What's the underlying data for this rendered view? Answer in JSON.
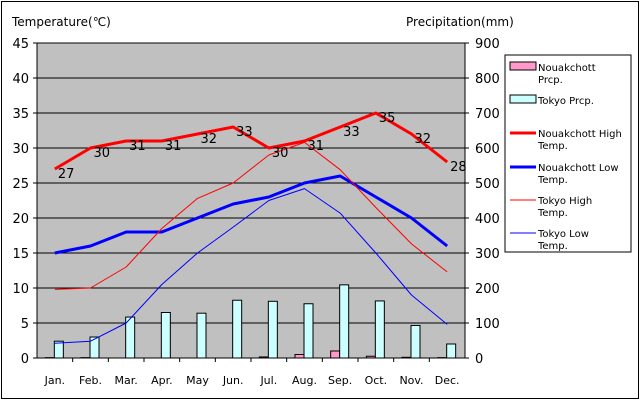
{
  "chart_data": {
    "type": "line",
    "title_left": "Temperature(℃)",
    "title_right": "Precipitation(mm)",
    "categories": [
      "Jan.",
      "Feb.",
      "Mar.",
      "Apr.",
      "May",
      "Jun.",
      "Jul.",
      "Aug.",
      "Sep.",
      "Oct.",
      "Nov.",
      "Dec."
    ],
    "y_left": {
      "min": 0,
      "max": 45,
      "step": 5,
      "ticks": [
        "0",
        "5",
        "10",
        "15",
        "20",
        "25",
        "30",
        "35",
        "40",
        "45"
      ]
    },
    "y_right": {
      "min": 0,
      "max": 900,
      "step": 100,
      "ticks": [
        "0",
        "100",
        "200",
        "300",
        "400",
        "500",
        "600",
        "700",
        "800",
        "900"
      ]
    },
    "grid": true,
    "legend_position": "right",
    "precipitation_series": [
      {
        "name": "Nouakchott Prcp.",
        "color": "#ff99cc",
        "axis": "right",
        "values": [
          1,
          1,
          0,
          0,
          0,
          0,
          3,
          10,
          20,
          5,
          2,
          1
        ]
      },
      {
        "name": "Tokyo Prcp.",
        "color": "#ccffff",
        "axis": "right",
        "values": [
          48,
          60,
          117,
          130,
          128,
          165,
          162,
          155,
          209,
          163,
          93,
          40
        ]
      }
    ],
    "temperature_series": [
      {
        "name": "Nouakchott High Temp.",
        "color": "#ff0000",
        "width": "thick",
        "axis": "left",
        "values": [
          27,
          30,
          31,
          31,
          32,
          33,
          30,
          31,
          33,
          35,
          32,
          28
        ],
        "labels": [
          "27",
          "30",
          "31",
          "31",
          "32",
          "33",
          "30",
          "31",
          "33",
          "35",
          "32",
          "28"
        ]
      },
      {
        "name": "Nouakchott Low Temp.",
        "color": "#0000ff",
        "width": "thick",
        "axis": "left",
        "values": [
          15,
          16,
          18,
          18,
          20,
          22,
          23,
          25,
          26,
          23,
          20,
          16
        ]
      },
      {
        "name": "Tokyo High Temp.",
        "color": "#ff0000",
        "width": "thin",
        "axis": "left",
        "values": [
          9.8,
          10,
          13,
          18.5,
          22.8,
          25,
          29,
          30.8,
          26.9,
          21.5,
          16.3,
          12.3
        ]
      },
      {
        "name": "Tokyo Low Temp.",
        "color": "#0000ff",
        "width": "thin",
        "axis": "left",
        "values": [
          2.1,
          2.4,
          5,
          10.5,
          15,
          18.7,
          22.5,
          24.2,
          20.7,
          15,
          9,
          4.8
        ]
      }
    ],
    "legend": [
      {
        "key": "nouakchott-prcp",
        "lines": [
          "Nouakchott",
          "Prcp."
        ],
        "kind": "box",
        "color": "#ff99cc"
      },
      {
        "key": "tokyo-prcp",
        "lines": [
          "Tokyo Prcp."
        ],
        "kind": "box",
        "color": "#ccffff"
      },
      {
        "key": "nouakchott-high",
        "lines": [
          "Nouakchott High",
          "Temp."
        ],
        "kind": "line",
        "color": "#ff0000",
        "width": "thick"
      },
      {
        "key": "nouakchott-low",
        "lines": [
          "Nouakchott Low",
          "Temp."
        ],
        "kind": "line",
        "color": "#0000ff",
        "width": "thick"
      },
      {
        "key": "tokyo-high",
        "lines": [
          "Tokyo High",
          "Temp."
        ],
        "kind": "line",
        "color": "#ff0000",
        "width": "thin"
      },
      {
        "key": "tokyo-low",
        "lines": [
          "Tokyo Low",
          "Temp."
        ],
        "kind": "line",
        "color": "#0000ff",
        "width": "thin"
      }
    ],
    "plot_background": "#c0c0c0"
  }
}
